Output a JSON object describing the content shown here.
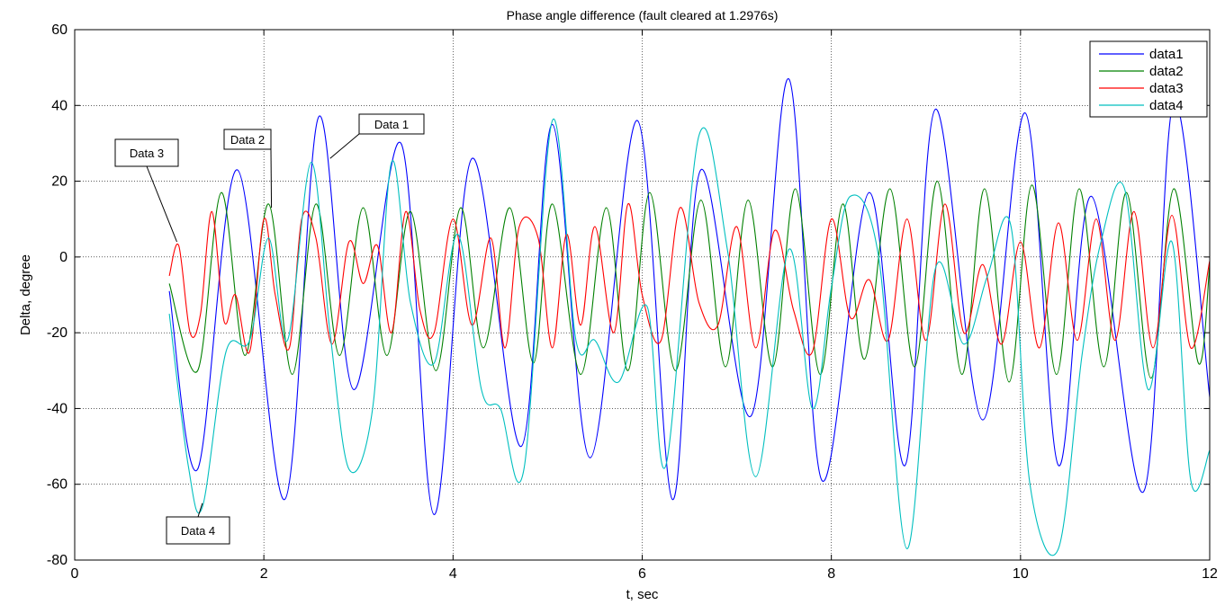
{
  "chart_data": {
    "type": "line",
    "title": "Phase angle difference (fault cleared at 1.2976s)",
    "xlabel": "t, sec",
    "ylabel": "Delta, degree",
    "xlim": [
      0,
      12
    ],
    "ylim": [
      -80,
      60
    ],
    "xticks": [
      0,
      2,
      4,
      6,
      8,
      10,
      12
    ],
    "yticks": [
      -80,
      -60,
      -40,
      -20,
      0,
      20,
      40,
      60
    ],
    "grid": true,
    "legend_position": "top-right",
    "series": [
      {
        "name": "data1",
        "color": "#0000ff",
        "x": [
          1.0,
          1.3,
          1.72,
          2.22,
          2.58,
          2.95,
          3.45,
          3.8,
          4.2,
          4.72,
          5.05,
          5.45,
          5.95,
          6.32,
          6.62,
          7.15,
          7.55,
          7.9,
          8.4,
          8.78,
          9.1,
          9.6,
          10.05,
          10.4,
          10.75,
          11.3,
          11.62,
          12.0
        ],
        "y": [
          -9,
          -56,
          23,
          -64,
          37,
          -35,
          30,
          -68,
          26,
          -50,
          35,
          -53,
          36,
          -64,
          23,
          -42,
          47,
          -59,
          17,
          -55,
          39,
          -43,
          38,
          -55,
          16,
          -62,
          41,
          -37
        ]
      },
      {
        "name": "data2",
        "color": "#008000",
        "x": [
          1.0,
          1.3,
          1.55,
          1.8,
          2.05,
          2.3,
          2.55,
          2.8,
          3.05,
          3.3,
          3.55,
          3.82,
          4.08,
          4.32,
          4.6,
          4.85,
          5.05,
          5.35,
          5.62,
          5.85,
          6.08,
          6.35,
          6.62,
          6.88,
          7.12,
          7.38,
          7.62,
          7.88,
          8.12,
          8.35,
          8.62,
          8.88,
          9.12,
          9.38,
          9.62,
          9.88,
          10.12,
          10.38,
          10.62,
          10.88,
          11.12,
          11.38,
          11.62,
          11.88,
          12.0
        ],
        "y": [
          -7,
          -30,
          17,
          -26,
          14,
          -31,
          14,
          -26,
          13,
          -26,
          12,
          -30,
          13,
          -24,
          13,
          -28,
          14,
          -31,
          13,
          -30,
          17,
          -30,
          15,
          -29,
          15,
          -29,
          18,
          -31,
          14,
          -27,
          18,
          -29,
          20,
          -31,
          18,
          -33,
          19,
          -31,
          18,
          -29,
          17,
          -32,
          18,
          -28,
          -2
        ]
      },
      {
        "name": "data3",
        "color": "#ff0000",
        "x": [
          1.0,
          1.1,
          1.22,
          1.33,
          1.45,
          1.58,
          1.7,
          1.85,
          2.0,
          2.12,
          2.27,
          2.4,
          2.55,
          2.72,
          2.9,
          3.05,
          3.2,
          3.35,
          3.5,
          3.65,
          3.8,
          4.0,
          4.2,
          4.4,
          4.55,
          4.7,
          4.9,
          5.05,
          5.2,
          5.35,
          5.5,
          5.7,
          5.85,
          6.0,
          6.2,
          6.4,
          6.6,
          6.8,
          7.0,
          7.2,
          7.4,
          7.6,
          7.8,
          8.0,
          8.2,
          8.4,
          8.6,
          8.8,
          9.0,
          9.2,
          9.4,
          9.6,
          9.8,
          10.0,
          10.2,
          10.4,
          10.6,
          10.8,
          11.0,
          11.2,
          11.4,
          11.6,
          11.8,
          12.0
        ],
        "y": [
          -5,
          3,
          -20,
          -15,
          12,
          -17,
          -10,
          -25,
          10,
          -10,
          -24,
          10,
          5,
          -23,
          4,
          -7,
          3,
          -20,
          12,
          -14,
          -20,
          10,
          -18,
          5,
          -24,
          8,
          5,
          -24,
          6,
          -18,
          8,
          -20,
          14,
          -10,
          -22,
          13,
          -12,
          -18,
          8,
          -24,
          7,
          -14,
          -25,
          10,
          -16,
          -6,
          -22,
          10,
          -22,
          14,
          -20,
          -2,
          -23,
          4,
          -24,
          9,
          -22,
          10,
          -22,
          12,
          -24,
          11,
          -24,
          -1
        ]
      },
      {
        "name": "data4",
        "color": "#00bfbf",
        "x": [
          1.0,
          1.2,
          1.35,
          1.6,
          1.85,
          2.05,
          2.25,
          2.5,
          2.7,
          2.9,
          3.15,
          3.35,
          3.55,
          3.8,
          4.05,
          4.3,
          4.5,
          4.75,
          5.05,
          5.3,
          5.5,
          5.75,
          6.05,
          6.25,
          6.6,
          6.9,
          7.2,
          7.55,
          7.8,
          8.0,
          8.2,
          8.5,
          8.8,
          9.1,
          9.4,
          9.65,
          9.9,
          10.1,
          10.4,
          10.65,
          10.85,
          11.1,
          11.35,
          11.6,
          11.8,
          12.0
        ],
        "y": [
          -15,
          -55,
          -66,
          -25,
          -22,
          5,
          -22,
          25,
          -20,
          -56,
          -40,
          25,
          -12,
          -28,
          6,
          -35,
          -40,
          -56,
          36,
          -22,
          -22,
          -33,
          -13,
          -55,
          32,
          2,
          -58,
          2,
          -40,
          -8,
          16,
          0,
          -77,
          -3,
          -23,
          -5,
          8,
          -60,
          -77,
          -26,
          4,
          18,
          -35,
          4,
          -59,
          -51
        ]
      }
    ],
    "annotations": [
      {
        "text": "Data 1",
        "x": 2.7,
        "y": 26
      },
      {
        "text": "Data 2",
        "x": 2.08,
        "y": 13
      },
      {
        "text": "Data 3",
        "x": 1.08,
        "y": 4
      },
      {
        "text": "Data 4",
        "x": 1.35,
        "y": -65
      }
    ]
  }
}
